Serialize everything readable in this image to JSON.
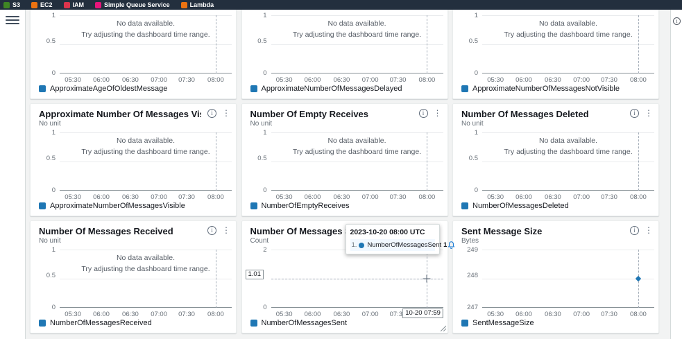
{
  "topbar": {
    "favorites": [
      {
        "label": "S3",
        "color": "#3f8624",
        "icon": "s3-icon"
      },
      {
        "label": "EC2",
        "color": "#ec7211",
        "icon": "ec2-icon"
      },
      {
        "label": "IAM",
        "color": "#dd344c",
        "icon": "iam-icon"
      },
      {
        "label": "Simple Queue Service",
        "color": "#e7157b",
        "icon": "sqs-icon"
      },
      {
        "label": "Lambda",
        "color": "#ec7211",
        "icon": "lambda-icon"
      }
    ]
  },
  "common": {
    "no_data_line1": "No data available.",
    "no_data_line2": "Try adjusting the dashboard time range.",
    "xticks": [
      "05:30",
      "06:00",
      "06:30",
      "07:00",
      "07:30",
      "08:00"
    ],
    "series_color": "#1f77b4"
  },
  "tooltip": {
    "timestamp": "2023-10-20 08:00 UTC",
    "rank": "1.",
    "series": "NumberOfMessagesSent",
    "value": "1"
  },
  "charts": [
    {
      "title": "",
      "unit": "",
      "legend": "ApproximateAgeOfOldestMessage",
      "yticks": [
        "1",
        "0.5",
        "0"
      ],
      "no_data": true,
      "vline": true,
      "cropped": true
    },
    {
      "title": "",
      "unit": "",
      "legend": "ApproximateNumberOfMessagesDelayed",
      "yticks": [
        "1",
        "0.5",
        "0"
      ],
      "no_data": true,
      "vline": true,
      "cropped": true
    },
    {
      "title": "",
      "unit": "",
      "legend": "ApproximateNumberOfMessagesNotVisible",
      "yticks": [
        "1",
        "0.5",
        "0"
      ],
      "no_data": true,
      "vline": true,
      "cropped": true
    },
    {
      "title": "Approximate Number Of Messages Visible",
      "unit": "No unit",
      "legend": "ApproximateNumberOfMessagesVisible",
      "yticks": [
        "1",
        "0.5",
        "0"
      ],
      "no_data": true,
      "vline": true
    },
    {
      "title": "Number Of Empty Receives",
      "unit": "No unit",
      "legend": "NumberOfEmptyReceives",
      "yticks": [
        "1",
        "0.5",
        "0"
      ],
      "no_data": true,
      "vline": true
    },
    {
      "title": "Number Of Messages Deleted",
      "unit": "No unit",
      "legend": "NumberOfMessagesDeleted",
      "yticks": [
        "1",
        "0.5",
        "0"
      ],
      "no_data": true,
      "vline": true
    },
    {
      "title": "Number Of Messages Received",
      "unit": "No unit",
      "legend": "NumberOfMessagesReceived",
      "yticks": [
        "1",
        "0.5",
        "0"
      ],
      "no_data": true,
      "vline": true
    },
    {
      "title": "Number Of Messages Sent",
      "unit": "Count",
      "legend": "NumberOfMessagesSent",
      "yticks": [
        "2",
        "",
        "0"
      ],
      "no_data": false,
      "vline": true,
      "hline": true,
      "ybox": "1.01",
      "xbox": "10-20 07:59",
      "marker": "cross",
      "tooltip": true,
      "resize": true
    },
    {
      "title": "Sent Message Size",
      "unit": "Bytes",
      "legend": "SentMessageSize",
      "yticks": [
        "249",
        "248",
        "247"
      ],
      "no_data": false,
      "vline": true,
      "marker": "point"
    }
  ],
  "chart_data": [
    {
      "type": "line",
      "title": "Number Of Messages Sent",
      "ylabel": "Count",
      "ylim": [
        0,
        2
      ],
      "x_range": [
        "05:30",
        "08:00"
      ],
      "series": [
        {
          "name": "NumberOfMessagesSent",
          "points": [
            {
              "x": "2023-10-20 08:00 UTC",
              "y": 1
            }
          ]
        }
      ],
      "crosshair": {
        "y": 1.01,
        "x": "10-20 07:59"
      }
    },
    {
      "type": "line",
      "title": "Sent Message Size",
      "ylabel": "Bytes",
      "ylim": [
        247,
        249
      ],
      "x_range": [
        "05:30",
        "08:00"
      ],
      "series": [
        {
          "name": "SentMessageSize",
          "points": [
            {
              "x": "08:00",
              "y": 248
            }
          ]
        }
      ]
    }
  ]
}
